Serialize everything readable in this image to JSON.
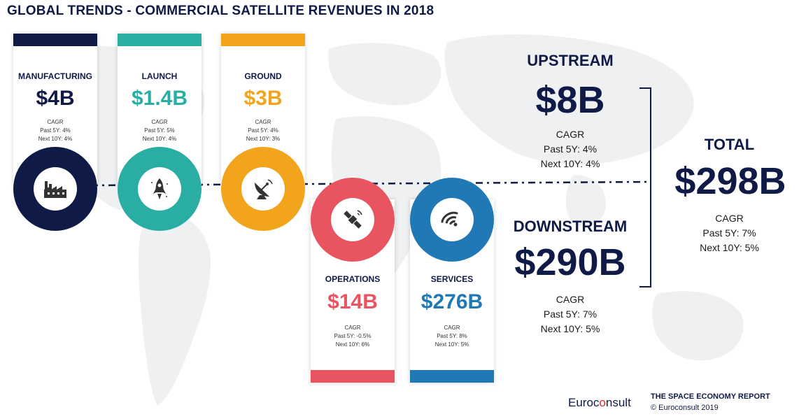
{
  "header": {
    "title": "GLOBAL TRENDS - COMMERCIAL SATELLITE REVENUES IN 2018"
  },
  "colors": {
    "navy": "#0f1a47",
    "teal": "#2aaea3",
    "yellow": "#f2a51c",
    "red": "#e85560",
    "blue": "#2079b4"
  },
  "segments": [
    {
      "name": "MANUFACTURING",
      "value": "$4B",
      "cagr": "CAGR",
      "past": "Past 5Y: 4%",
      "next": "Next 10Y: 4%",
      "icon": "factory-icon",
      "color": "#0f1a47"
    },
    {
      "name": "LAUNCH",
      "value": "$1.4B",
      "cagr": "CAGR",
      "past": "Past 5Y: 5%",
      "next": "Next 10Y: 4%",
      "icon": "rocket-icon",
      "color": "#2aaea3"
    },
    {
      "name": "GROUND",
      "value": "$3B",
      "cagr": "CAGR",
      "past": "Past 5Y: 4%",
      "next": "Next 10Y: 3%",
      "icon": "satellite-dish-icon",
      "color": "#f2a51c"
    },
    {
      "name": "OPERATIONS",
      "value": "$14B",
      "cagr": "CAGR",
      "past": "Past 5Y: -0.5%",
      "next": "Next 10Y: 6%",
      "icon": "satellite-icon",
      "color": "#e85560"
    },
    {
      "name": "SERVICES",
      "value": "$276B",
      "cagr": "CAGR",
      "past": "Past 5Y: 8%",
      "next": "Next 10Y: 5%",
      "icon": "wifi-icon",
      "color": "#2079b4"
    }
  ],
  "upstream": {
    "label": "UPSTREAM",
    "value": "$8B",
    "cagr": "CAGR",
    "past": "Past 5Y: 4%",
    "next": "Next 10Y: 4%"
  },
  "downstream": {
    "label": "DOWNSTREAM",
    "value": "$290B",
    "cagr": "CAGR",
    "past": "Past 5Y: 7%",
    "next": "Next 10Y: 5%"
  },
  "total": {
    "label": "TOTAL",
    "value": "$298B",
    "cagr": "CAGR",
    "past": "Past 5Y: 7%",
    "next": "Next 10Y: 5%"
  },
  "footer": {
    "logo_pre": "Euroc",
    "logo_o": "o",
    "logo_post": "nsult",
    "report": "THE SPACE ECONOMY REPORT",
    "copyright": "© Euroconsult 2019"
  }
}
